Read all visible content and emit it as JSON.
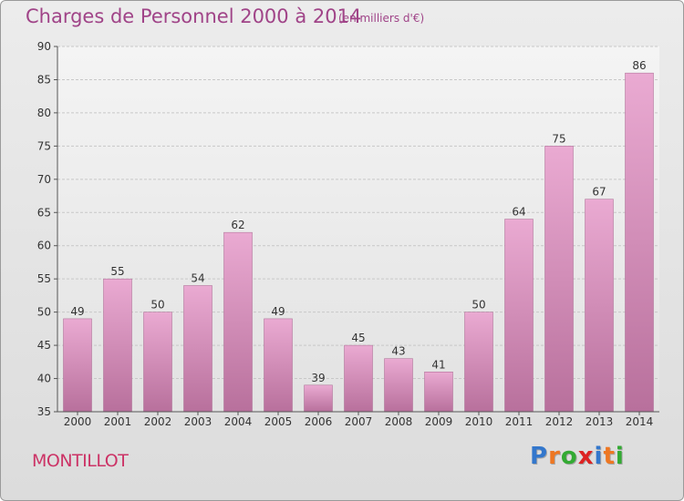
{
  "header": {
    "title": "Charges de Personnel 2000 à 2014",
    "unit": "(en milliers d'€)"
  },
  "footer": {
    "commune": "MONTILLOT",
    "logo_text": "Proxiti",
    "logo_colors": [
      "#3377cc",
      "#ee7722",
      "#33aa33",
      "#dd2222",
      "#3377cc",
      "#ee7722",
      "#33aa33"
    ]
  },
  "chart_data": {
    "type": "bar",
    "title": "Charges de Personnel 2000 à 2014",
    "unit": "(en milliers d'€)",
    "categories": [
      "2000",
      "2001",
      "2002",
      "2003",
      "2004",
      "2005",
      "2006",
      "2007",
      "2008",
      "2009",
      "2010",
      "2011",
      "2012",
      "2013",
      "2014"
    ],
    "values": [
      49,
      55,
      50,
      54,
      62,
      49,
      39,
      45,
      43,
      41,
      50,
      64,
      75,
      67,
      86
    ],
    "ylim": [
      35,
      90
    ],
    "yticks": [
      35,
      40,
      45,
      50,
      55,
      60,
      65,
      70,
      75,
      80,
      85,
      90
    ],
    "grid": true,
    "bar_color": "#d98cb8"
  }
}
